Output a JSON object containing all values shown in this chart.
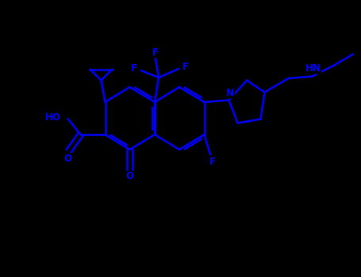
{
  "bg_color": "#000000",
  "bond_color": "#0000FF",
  "text_color": "#0000FF",
  "line_width": 1.8,
  "font_size": 8.5,
  "figsize": [
    4.55,
    3.5
  ],
  "dpi": 100,
  "xlim": [
    0,
    9.1
  ],
  "ylim": [
    0,
    7.0
  ]
}
